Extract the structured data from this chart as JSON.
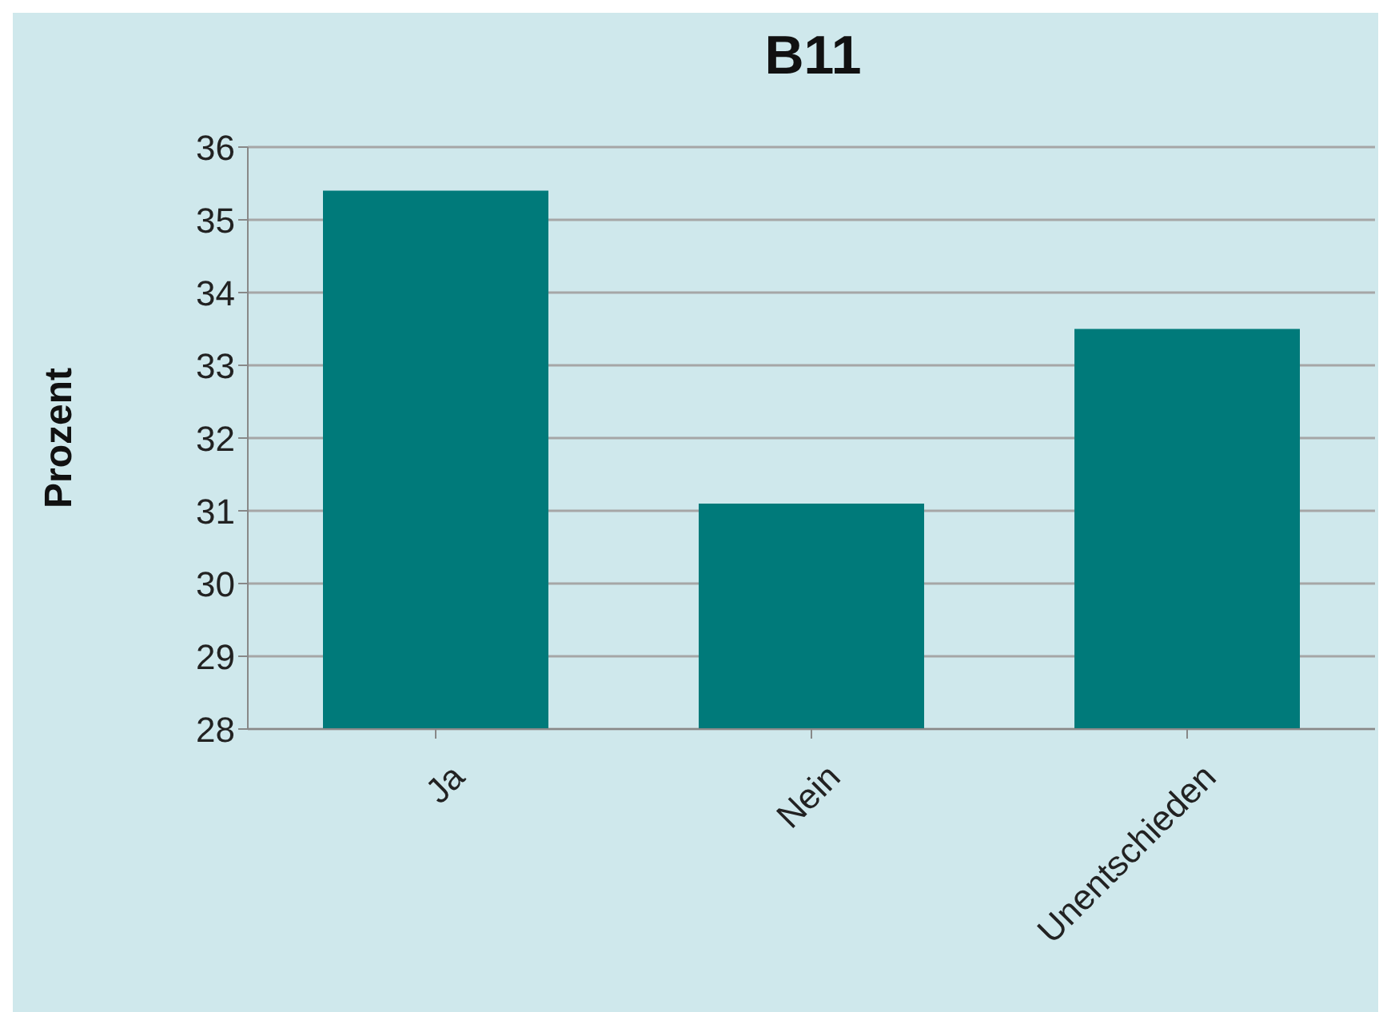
{
  "chart_data": {
    "type": "bar",
    "title": "B11",
    "ylabel": "Prozent",
    "categories": [
      "Ja",
      "Nein",
      "Unentschieden"
    ],
    "values": [
      35.4,
      31.1,
      33.5
    ],
    "color": "#007a7a",
    "ylim": [
      28,
      36
    ],
    "yticks": [
      28,
      29,
      30,
      31,
      32,
      33,
      34,
      35,
      36
    ],
    "grid": "y",
    "legend": false
  }
}
